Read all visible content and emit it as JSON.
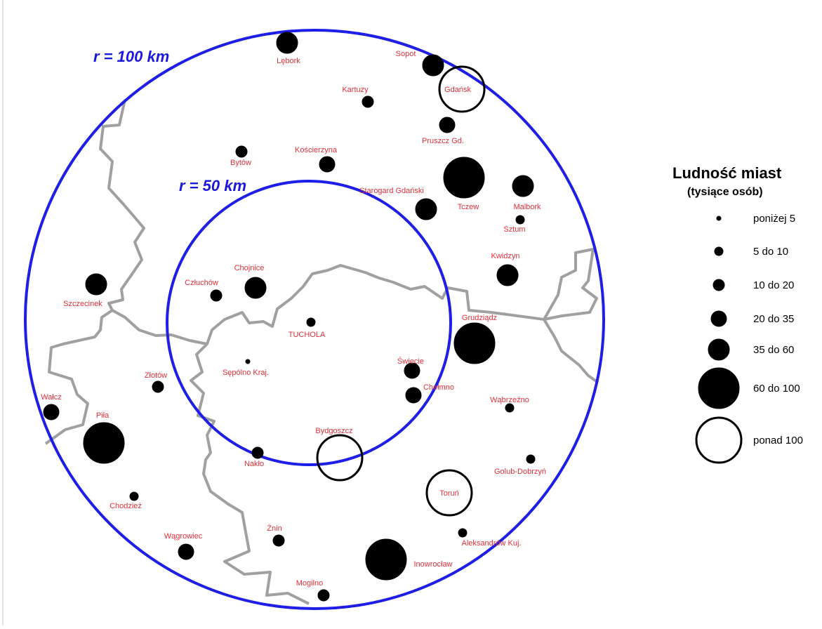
{
  "map": {
    "colors": {
      "ring": "#1e1ee6",
      "border": "#a0a0a0",
      "city_fill": "#000000",
      "label": "#e0303a",
      "ring_label": "#1a1adc"
    },
    "rings": [
      {
        "id": "outer",
        "label": "r = 100 km"
      },
      {
        "id": "inner",
        "label": "r = 50 km"
      }
    ],
    "legend": {
      "title": "Ludność miast",
      "subtitle": "(tysiące osób)",
      "classes": [
        {
          "label": "poniżej 5"
        },
        {
          "label": "5 do 10"
        },
        {
          "label": "10 do 20"
        },
        {
          "label": "20 do 35"
        },
        {
          "label": "35 do 60"
        },
        {
          "label": "60 do 100"
        },
        {
          "label": "ponad 100"
        }
      ]
    },
    "cities": [
      {
        "name": "Lębork",
        "size_class": 4
      },
      {
        "name": "Sopot",
        "size_class": 4
      },
      {
        "name": "Gdańsk",
        "size_class": 6
      },
      {
        "name": "Kartuzy",
        "size_class": 2
      },
      {
        "name": "Pruszcz Gd.",
        "size_class": 3
      },
      {
        "name": "Bytów",
        "size_class": 2
      },
      {
        "name": "Kościerzyna",
        "size_class": 3
      },
      {
        "name": "Starogard Gdański",
        "size_class": 4
      },
      {
        "name": "Tczew",
        "size_class": 5
      },
      {
        "name": "Malbork",
        "size_class": 4
      },
      {
        "name": "Sztum",
        "size_class": 1
      },
      {
        "name": "Kwidzyn",
        "size_class": 4
      },
      {
        "name": "Szczecinek",
        "size_class": 4
      },
      {
        "name": "Człuchów",
        "size_class": 2
      },
      {
        "name": "Chojnice",
        "size_class": 4
      },
      {
        "name": "TUCHOLA",
        "size_class": 1
      },
      {
        "name": "Sępólno Kraj.",
        "size_class": 0
      },
      {
        "name": "Grudziądz",
        "size_class": 5
      },
      {
        "name": "Świecie",
        "size_class": 3
      },
      {
        "name": "Chełmno",
        "size_class": 3
      },
      {
        "name": "Złotów",
        "size_class": 2
      },
      {
        "name": "Wałcz",
        "size_class": 3
      },
      {
        "name": "Piła",
        "size_class": 5
      },
      {
        "name": "Bydgoszcz",
        "size_class": 6
      },
      {
        "name": "Nakło",
        "size_class": 2
      },
      {
        "name": "Wąbrzeźno",
        "size_class": 1
      },
      {
        "name": "Golub-Dobrzyń",
        "size_class": 1
      },
      {
        "name": "Toruń",
        "size_class": 6
      },
      {
        "name": "Chodzież",
        "size_class": 1
      },
      {
        "name": "Wągrowiec",
        "size_class": 3
      },
      {
        "name": "Żnin",
        "size_class": 2
      },
      {
        "name": "Aleksandrów Kuj.",
        "size_class": 1
      },
      {
        "name": "Inowrocław",
        "size_class": 5
      },
      {
        "name": "Mogilno",
        "size_class": 2
      }
    ]
  }
}
